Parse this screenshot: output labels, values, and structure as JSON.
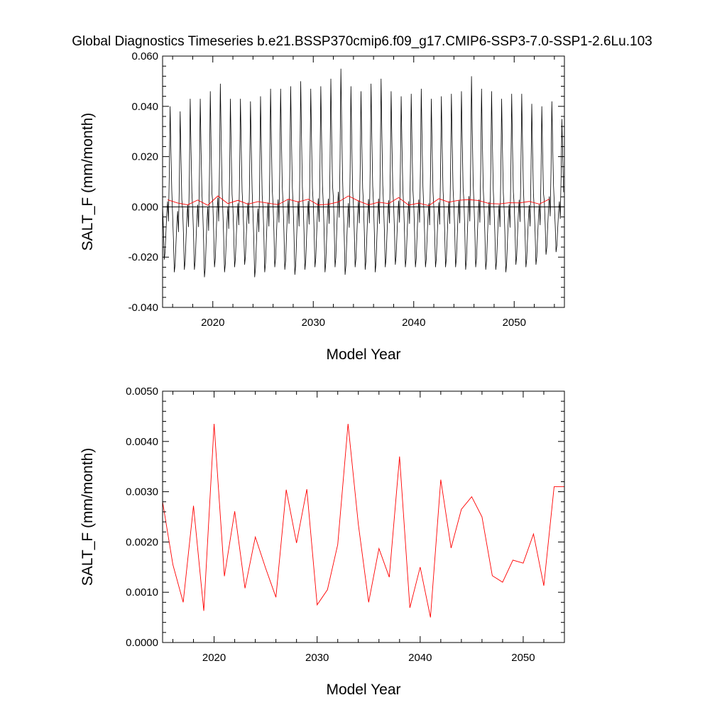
{
  "figure_title": "Global Diagnostics Timeseries b.e21.BSSP370cmip6.f09_g17.CMIP6-SSP3-7.0-SSP1-2.6Lu.103",
  "colors": {
    "monthly": "#000000",
    "annual": "#ff0000",
    "zero_line": "#000000"
  },
  "chart_data": [
    {
      "type": "line",
      "xlabel": "Model Year",
      "ylabel": "SALT_F (mm/month)",
      "xlim": [
        2015,
        2055
      ],
      "ylim": [
        -0.04,
        0.06
      ],
      "x_ticks": [
        2020,
        2030,
        2040,
        2050
      ],
      "x_tick_labels": [
        "2020",
        "2030",
        "2040",
        "2050"
      ],
      "y_ticks": [
        -0.04,
        -0.02,
        0.0,
        0.02,
        0.04,
        0.06
      ],
      "y_tick_labels": [
        "-0.040",
        "-0.020",
        "0.000",
        "0.020",
        "0.040",
        "0.060"
      ],
      "reference_line_y": 0.0,
      "grid": false,
      "series": [
        {
          "color": "#000000",
          "resolution": "monthly",
          "x_start": 2015.0,
          "x_step": 0.0833333,
          "yearly_peaks": [
            0.04,
            0.038,
            0.043,
            0.043,
            0.046,
            0.049,
            0.043,
            0.043,
            0.042,
            0.044,
            0.047,
            0.047,
            0.048,
            0.05,
            0.047,
            0.048,
            0.051,
            0.055,
            0.048,
            0.046,
            0.049,
            0.051,
            0.046,
            0.044,
            0.045,
            0.047,
            0.043,
            0.044,
            0.045,
            0.046,
            0.052,
            0.047,
            0.046,
            0.043,
            0.045,
            0.045,
            0.041,
            0.04,
            0.042,
            0.035
          ],
          "yearly_troughs": [
            -0.021,
            -0.026,
            -0.025,
            -0.025,
            -0.028,
            -0.024,
            -0.026,
            -0.024,
            -0.023,
            -0.028,
            -0.026,
            -0.024,
            -0.025,
            -0.027,
            -0.025,
            -0.024,
            -0.026,
            -0.024,
            -0.027,
            -0.024,
            -0.025,
            -0.026,
            -0.024,
            -0.023,
            -0.024,
            -0.024,
            -0.024,
            -0.024,
            -0.024,
            -0.024,
            -0.025,
            -0.024,
            -0.025,
            -0.025,
            -0.026,
            -0.023,
            -0.024,
            -0.023,
            -0.019,
            -0.018
          ]
        },
        {
          "color": "#ff0000",
          "resolution": "annual",
          "x": [
            2015.5,
            2016.5,
            2017.5,
            2018.5,
            2019.5,
            2020.5,
            2021.5,
            2022.5,
            2023.5,
            2024.5,
            2025.5,
            2026.5,
            2027.5,
            2028.5,
            2029.5,
            2030.5,
            2031.5,
            2032.5,
            2033.5,
            2034.5,
            2035.5,
            2036.5,
            2037.5,
            2038.5,
            2039.5,
            2040.5,
            2041.5,
            2042.5,
            2043.5,
            2044.5,
            2045.5,
            2046.5,
            2047.5,
            2048.5,
            2049.5,
            2050.5,
            2051.5,
            2052.5,
            2053.5
          ],
          "values": [
            0.0028,
            0.00155,
            0.0008,
            0.00272,
            0.00063,
            0.00435,
            0.00132,
            0.00261,
            0.00108,
            0.0021,
            0.00148,
            0.0009,
            0.00304,
            0.00198,
            0.00305,
            0.00075,
            0.00105,
            0.00195,
            0.00435,
            0.00235,
            0.0008,
            0.00187,
            0.0013,
            0.0037,
            0.00069,
            0.0015,
            0.0005,
            0.00324,
            0.00188,
            0.00265,
            0.0029,
            0.0025,
            0.00133,
            0.0012,
            0.00164,
            0.00158,
            0.00216,
            0.00113,
            0.0031
          ]
        }
      ]
    },
    {
      "type": "line",
      "xlabel": "Model Year",
      "ylabel": "SALT_F (mm/month)",
      "xlim": [
        2015,
        2054
      ],
      "ylim": [
        0.0,
        0.005
      ],
      "x_ticks": [
        2020,
        2030,
        2040,
        2050
      ],
      "x_tick_labels": [
        "2020",
        "2030",
        "2040",
        "2050"
      ],
      "y_ticks": [
        0.0,
        0.001,
        0.002,
        0.003,
        0.004,
        0.005
      ],
      "y_tick_labels": [
        "0.0000",
        "0.0010",
        "0.0020",
        "0.0030",
        "0.0040",
        "0.0050"
      ],
      "grid": false,
      "series": [
        {
          "color": "#ff0000",
          "resolution": "annual",
          "x": [
            2015.0,
            2016.0,
            2017.0,
            2018.0,
            2019.0,
            2020.0,
            2021.0,
            2022.0,
            2023.0,
            2024.0,
            2025.0,
            2026.0,
            2027.0,
            2028.0,
            2029.0,
            2030.0,
            2031.0,
            2032.0,
            2033.0,
            2034.0,
            2035.0,
            2036.0,
            2037.0,
            2038.0,
            2039.0,
            2040.0,
            2041.0,
            2042.0,
            2043.0,
            2044.0,
            2045.0,
            2046.0,
            2047.0,
            2048.0,
            2049.0,
            2050.0,
            2051.0,
            2052.0,
            2053.0,
            2054.0
          ],
          "values": [
            0.0028,
            0.00155,
            0.0008,
            0.00272,
            0.00063,
            0.00435,
            0.00132,
            0.00261,
            0.00108,
            0.0021,
            0.00148,
            0.0009,
            0.00304,
            0.00198,
            0.00305,
            0.00075,
            0.00105,
            0.00195,
            0.00435,
            0.00235,
            0.0008,
            0.00187,
            0.0013,
            0.0037,
            0.00069,
            0.0015,
            0.0005,
            0.00324,
            0.00188,
            0.00265,
            0.0029,
            0.0025,
            0.00133,
            0.0012,
            0.00164,
            0.00158,
            0.00216,
            0.00113,
            0.0031,
            0.0031
          ]
        }
      ]
    }
  ]
}
